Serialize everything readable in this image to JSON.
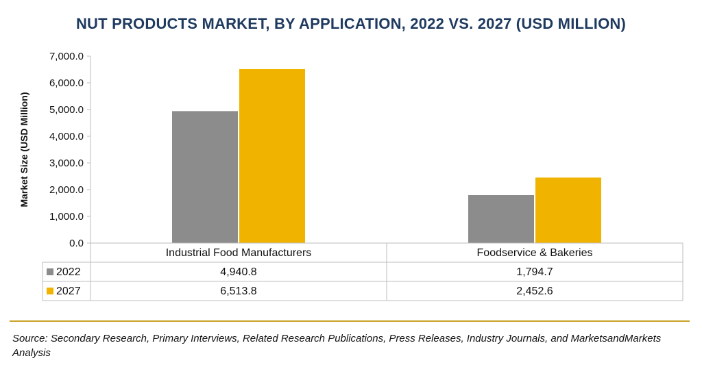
{
  "title": "NUT PRODUCTS MARKET, BY APPLICATION, 2022 VS. 2027 (USD MILLION)",
  "source": "Source: Secondary Research, Primary Interviews, Related Research Publications, Press Releases, Industry Journals, and MarketsandMarkets Analysis",
  "colors": {
    "title": "#1f3a5f",
    "series_2022": "#8c8c8c",
    "series_2027": "#f0b400",
    "divider": "#c9a227",
    "grid": "#bdbdbd"
  },
  "chart_data": {
    "type": "bar",
    "title": "NUT PRODUCTS MARKET, BY APPLICATION, 2022 VS. 2027 (USD MILLION)",
    "ylabel": "Market Size (USD Million)",
    "xlabel": "",
    "ylim": [
      0,
      7000
    ],
    "yticks": [
      "0.0",
      "1,000.0",
      "2,000.0",
      "3,000.0",
      "4,000.0",
      "5,000.0",
      "6,000.0",
      "7,000.0"
    ],
    "categories": [
      "Industrial Food Manufacturers",
      "Foodservice & Bakeries"
    ],
    "series": [
      {
        "name": "2022",
        "values": [
          4940.8,
          1794.7
        ],
        "labels": [
          "4,940.8",
          "1,794.7"
        ],
        "color": "#8c8c8c"
      },
      {
        "name": "2027",
        "values": [
          6513.8,
          2452.6
        ],
        "labels": [
          "6,513.8",
          "2,452.6"
        ],
        "color": "#f0b400"
      }
    ],
    "legend": "data-table",
    "grid": false
  }
}
